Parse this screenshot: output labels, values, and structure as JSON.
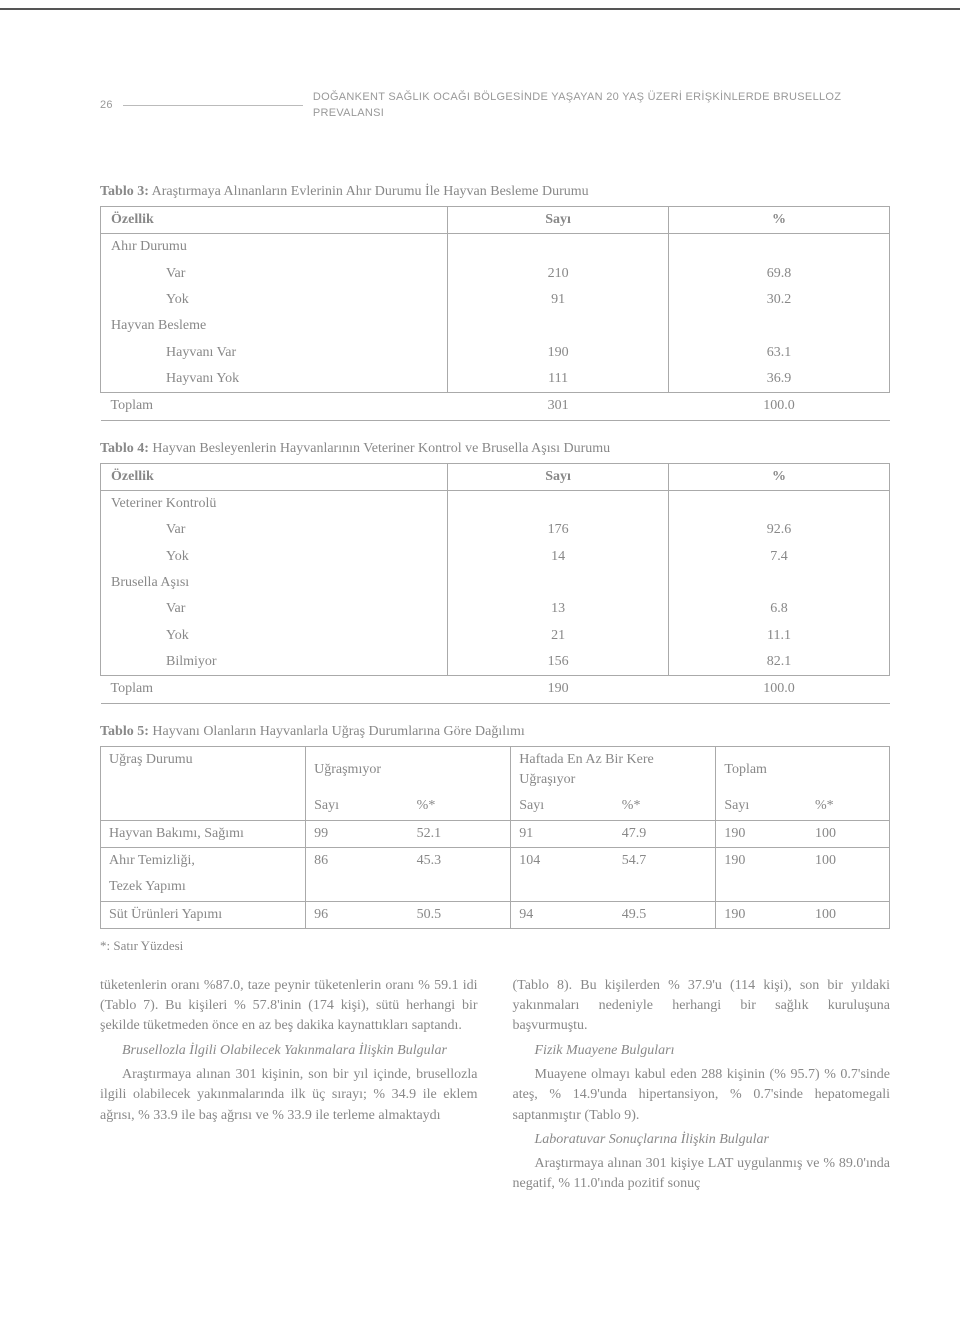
{
  "page_number": "26",
  "running_title": "DOĞANKENT SAĞLIK OCAĞI BÖLGESİNDE YAŞAYAN 20 YAŞ ÜZERİ ERİŞKİNLERDE BRUSELLOZ PREVALANSI",
  "colors": {
    "text": "#888888",
    "border": "#aaaaaa",
    "topline": "#555555",
    "bg": "#ffffff"
  },
  "table3": {
    "label": "Tablo 3:",
    "caption": "Araştırmaya Alınanların Evlerinin Ahır Durumu İle Hayvan Besleme Durumu",
    "head": [
      "Özellik",
      "Sayı",
      "%"
    ],
    "rows": [
      {
        "l": "Ahır Durumu",
        "s": "",
        "p": "",
        "indent": 0
      },
      {
        "l": "Var",
        "s": "210",
        "p": "69.8",
        "indent": 2
      },
      {
        "l": "Yok",
        "s": "91",
        "p": "30.2",
        "indent": 2
      },
      {
        "l": "Hayvan Besleme",
        "s": "",
        "p": "",
        "indent": 0
      },
      {
        "l": "Hayvanı Var",
        "s": "190",
        "p": "63.1",
        "indent": 2
      },
      {
        "l": "Hayvanı Yok",
        "s": "111",
        "p": "36.9",
        "indent": 2
      }
    ],
    "total": {
      "l": "Toplam",
      "s": "301",
      "p": "100.0"
    }
  },
  "table4": {
    "label": "Tablo 4:",
    "caption": "Hayvan Besleyenlerin Hayvanlarının Veteriner Kontrol ve Brusella Aşısı Durumu",
    "head": [
      "Özellik",
      "Sayı",
      "%"
    ],
    "rows": [
      {
        "l": "Veteriner Kontrolü",
        "s": "",
        "p": "",
        "indent": 0
      },
      {
        "l": "Var",
        "s": "176",
        "p": "92.6",
        "indent": 2
      },
      {
        "l": "Yok",
        "s": "14",
        "p": "7.4",
        "indent": 2
      },
      {
        "l": "Brusella Aşısı",
        "s": "",
        "p": "",
        "indent": 0
      },
      {
        "l": "Var",
        "s": "13",
        "p": "6.8",
        "indent": 2
      },
      {
        "l": "Yok",
        "s": "21",
        "p": "11.1",
        "indent": 2
      },
      {
        "l": "Bilmiyor",
        "s": "156",
        "p": "82.1",
        "indent": 2
      }
    ],
    "total": {
      "l": "Toplam",
      "s": "190",
      "p": "100.0"
    }
  },
  "table5": {
    "label": "Tablo 5:",
    "caption": "Hayvanı Olanların Hayvanlarla Uğraş Durumlarına Göre Dağılımı",
    "head_row1": [
      "Uğraş Durumu",
      "Uğraşmıyor",
      "Haftada En Az Bir Kere Uğraşıyor",
      "Toplam"
    ],
    "head_row2": [
      "Sayı",
      "%*",
      "Sayı",
      "%*",
      "Sayı",
      "%*"
    ],
    "rows": [
      {
        "l": "Hayvan Bakımı, Sağımı",
        "a": "99",
        "b": "52.1",
        "c": "91",
        "d": "47.9",
        "e": "190",
        "f": "100"
      },
      {
        "l": "Ahır Temizliği, Tezek Yapımı",
        "a": "86",
        "b": "45.3",
        "c": "104",
        "d": "54.7",
        "e": "190",
        "f": "100"
      },
      {
        "l": "Süt Ürünleri Yapımı",
        "a": "96",
        "b": "50.5",
        "c": "94",
        "d": "49.5",
        "e": "190",
        "f": "100"
      }
    ],
    "footnote": "*: Satır Yüzdesi"
  },
  "body": {
    "left": [
      {
        "t": "tüketenlerin oranı %87.0, taze peynir tüketenlerin oranı % 59.1 idi (Tablo 7). Bu kişileri % 57.8'inin (174 kişi), sütü herhangi bir şekilde tüketmeden önce en az beş dakika kaynattıkları saptandı.",
        "ind": false,
        "ital": false
      },
      {
        "t": "Brusellozla İlgili Olabilecek Yakınmalara İlişkin Bulgular",
        "ind": true,
        "ital": true
      },
      {
        "t": "Araştırmaya alınan 301 kişinin, son bir yıl içinde, brusellozla ilgili olabilecek yakınmalarında ilk üç sırayı; % 34.9 ile eklem ağrısı, % 33.9 ile baş ağrısı ve % 33.9 ile terleme almaktaydı",
        "ind": true,
        "ital": false
      }
    ],
    "right": [
      {
        "t": "(Tablo 8). Bu kişilerden % 37.9'u (114 kişi), son bir yıldaki yakınmaları nedeniyle herhangi bir sağlık kuruluşuna başvurmuştu.",
        "ind": false,
        "ital": false
      },
      {
        "t": "Fizik Muayene Bulguları",
        "ind": true,
        "ital": true
      },
      {
        "t": "Muayene olmayı kabul eden 288 kişinin (% 95.7) % 0.7'sinde ateş, % 14.9'unda hipertansiyon, % 0.7'sinde hepatomegali saptanmıştır (Tablo 9).",
        "ind": true,
        "ital": false
      },
      {
        "t": "Laboratuvar Sonuçlarına İlişkin Bulgular",
        "ind": true,
        "ital": true
      },
      {
        "t": "Araştırmaya alınan 301 kişiye LAT uygulanmış ve % 89.0'ında negatif, % 11.0'ında pozitif sonuç",
        "ind": true,
        "ital": false
      }
    ]
  }
}
